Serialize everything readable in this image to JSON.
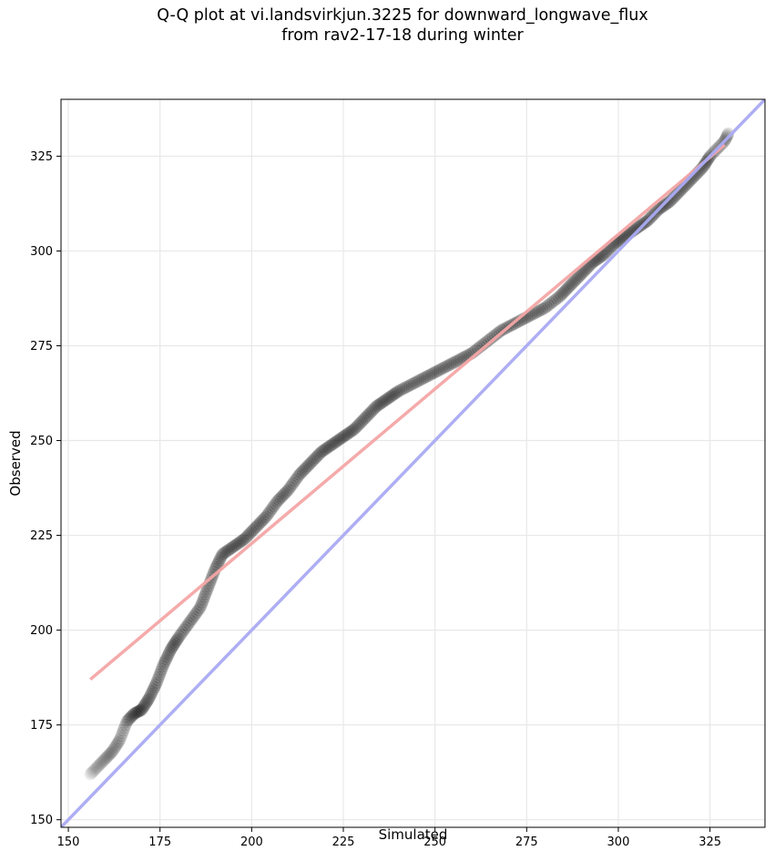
{
  "chart_data": {
    "type": "scatter",
    "title_line1": "Q-Q plot at vi.landsvirkjun.3225 for downward_longwave_flux",
    "title_line2": "from rav2-17-18 during winter",
    "xlabel": "Simulated",
    "ylabel": "Observed",
    "xlim": [
      148,
      340
    ],
    "ylim": [
      148,
      340
    ],
    "x_ticks": [
      150,
      175,
      200,
      225,
      250,
      275,
      300,
      325
    ],
    "y_ticks": [
      150,
      175,
      200,
      225,
      250,
      275,
      300,
      325
    ],
    "grid": true,
    "quantile_curve": [
      [
        156,
        162
      ],
      [
        158,
        164
      ],
      [
        160,
        166
      ],
      [
        162,
        168
      ],
      [
        164,
        171
      ],
      [
        166,
        176
      ],
      [
        168,
        178
      ],
      [
        170,
        179
      ],
      [
        172,
        182
      ],
      [
        174,
        186
      ],
      [
        176,
        191
      ],
      [
        178,
        195
      ],
      [
        180,
        198
      ],
      [
        183,
        202
      ],
      [
        186,
        206
      ],
      [
        188,
        211
      ],
      [
        190,
        216
      ],
      [
        192,
        220
      ],
      [
        195,
        222
      ],
      [
        198,
        224
      ],
      [
        201,
        227
      ],
      [
        204,
        230
      ],
      [
        207,
        234
      ],
      [
        210,
        237
      ],
      [
        213,
        241
      ],
      [
        216,
        244
      ],
      [
        219,
        247
      ],
      [
        222,
        249
      ],
      [
        225,
        251
      ],
      [
        228,
        253
      ],
      [
        231,
        256
      ],
      [
        234,
        259
      ],
      [
        237,
        261
      ],
      [
        240,
        263
      ],
      [
        244,
        265
      ],
      [
        248,
        267
      ],
      [
        252,
        269
      ],
      [
        256,
        271
      ],
      [
        260,
        273
      ],
      [
        264,
        276
      ],
      [
        268,
        279
      ],
      [
        272,
        281
      ],
      [
        276,
        283
      ],
      [
        280,
        285
      ],
      [
        284,
        288
      ],
      [
        287,
        291
      ],
      [
        290,
        294
      ],
      [
        293,
        297
      ],
      [
        296,
        299
      ],
      [
        299,
        302
      ],
      [
        302,
        304
      ],
      [
        305,
        306
      ],
      [
        308,
        308
      ],
      [
        311,
        311
      ],
      [
        314,
        313
      ],
      [
        317,
        316
      ],
      [
        320,
        319
      ],
      [
        323,
        322
      ],
      [
        325,
        325
      ],
      [
        327,
        327
      ],
      [
        329,
        329
      ],
      [
        330,
        331
      ]
    ],
    "fit_line": [
      [
        156,
        187
      ],
      [
        329,
        328
      ]
    ],
    "identity_line": [
      [
        148,
        148
      ],
      [
        340,
        340
      ]
    ],
    "colors": {
      "points": "#000000",
      "fit_line": "#f4a5a5",
      "identity_line": "#aaaaf3",
      "grid": "#e8e8e8"
    }
  }
}
